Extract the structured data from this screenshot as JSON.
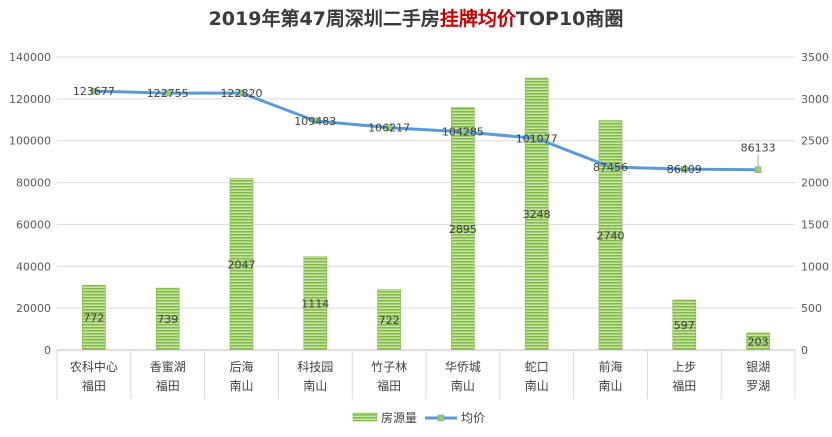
{
  "title": {
    "prefix": "2019年第47周深圳二手房",
    "highlight": "挂牌均价",
    "suffix": "TOP10商圈"
  },
  "chart_data": {
    "type": "bar+line",
    "title": "2019年第47周深圳二手房挂牌均价TOP10商圈",
    "categories": [
      {
        "name": "农科中心",
        "district": "福田"
      },
      {
        "name": "香蜜湖",
        "district": "福田"
      },
      {
        "name": "后海",
        "district": "南山"
      },
      {
        "name": "科技园",
        "district": "南山"
      },
      {
        "name": "竹子林",
        "district": "福田"
      },
      {
        "name": "华侨城",
        "district": "南山"
      },
      {
        "name": "蛇口",
        "district": "南山"
      },
      {
        "name": "前海",
        "district": "南山"
      },
      {
        "name": "上步",
        "district": "福田"
      },
      {
        "name": "银湖",
        "district": "罗湖"
      }
    ],
    "series": [
      {
        "name": "房源量",
        "type": "bar",
        "axis": "right",
        "color": "#8cc152",
        "values": [
          772,
          739,
          2047,
          1114,
          722,
          2895,
          3248,
          2740,
          597,
          203
        ]
      },
      {
        "name": "均价",
        "type": "line",
        "axis": "left",
        "color": "#5b9bd5",
        "values": [
          123677,
          122755,
          122820,
          109483,
          106217,
          104285,
          101077,
          87456,
          86409,
          86133
        ]
      }
    ],
    "left_axis": {
      "min": 0,
      "max": 140000,
      "ticks": [
        "0",
        "20000",
        "40000",
        "60000",
        "80000",
        "100000",
        "120000",
        "140000"
      ]
    },
    "right_axis": {
      "min": 0,
      "max": 3500,
      "ticks": [
        "0",
        "500",
        "1000",
        "1500",
        "2000",
        "2500",
        "3000",
        "3500"
      ]
    },
    "legend": {
      "position": "bottom",
      "items": [
        "房源量",
        "均价"
      ]
    },
    "grid": true
  }
}
